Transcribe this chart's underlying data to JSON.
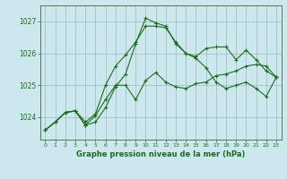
{
  "title": "Graphe pression niveau de la mer (hPa)",
  "bg_color": "#cce8ee",
  "grid_color": "#99bbbb",
  "line_color": "#1a6e1a",
  "text_color": "#1a6e1a",
  "ylabel_ticks": [
    1024,
    1025,
    1026,
    1027
  ],
  "xlim": [
    -0.5,
    23.5
  ],
  "ylim": [
    1023.3,
    1027.5
  ],
  "xticks": [
    0,
    1,
    2,
    3,
    4,
    5,
    6,
    7,
    8,
    9,
    10,
    11,
    12,
    13,
    14,
    15,
    16,
    17,
    18,
    19,
    20,
    21,
    22,
    23
  ],
  "series": [
    [
      1023.6,
      1023.85,
      1024.15,
      1024.2,
      1023.75,
      1024.05,
      1024.55,
      1025.0,
      1025.0,
      1024.55,
      1025.15,
      1025.4,
      1025.1,
      1024.95,
      1024.9,
      1025.05,
      1025.1,
      1025.3,
      1025.35,
      1025.45,
      1025.6,
      1025.65,
      1025.6,
      1025.25
    ],
    [
      1023.6,
      1023.85,
      1024.15,
      1024.2,
      1023.75,
      1023.85,
      1024.3,
      1024.95,
      1025.35,
      1026.3,
      1027.1,
      1026.95,
      1026.85,
      1026.3,
      1026.0,
      1025.85,
      1025.55,
      1025.1,
      1024.9,
      1025.0,
      1025.1,
      1024.9,
      1024.65,
      1025.25
    ],
    [
      1023.6,
      1023.85,
      1024.15,
      1024.2,
      1023.85,
      1024.1,
      1025.0,
      1025.6,
      1025.95,
      1026.35,
      1026.85,
      1026.85,
      1026.8,
      1026.35,
      1026.0,
      1025.9,
      1026.15,
      1026.2,
      1026.2,
      1025.8,
      1026.1,
      1025.8,
      1025.45,
      1025.25
    ]
  ]
}
